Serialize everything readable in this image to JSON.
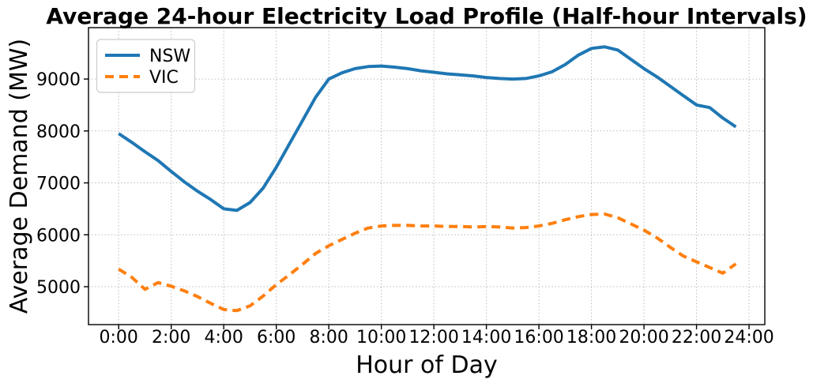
{
  "chart_data": {
    "type": "line",
    "title": "Average 24-hour Electricity Load Profile (Half-hour Intervals)",
    "xlabel": "Hour of Day",
    "ylabel": "Average Demand (MW)",
    "x_unit": "hour_of_day_decimal",
    "x_hours": [
      0,
      0.5,
      1,
      1.5,
      2,
      2.5,
      3,
      3.5,
      4,
      4.5,
      5,
      5.5,
      6,
      6.5,
      7,
      7.5,
      8,
      8.5,
      9,
      9.5,
      10,
      10.5,
      11,
      11.5,
      12,
      12.5,
      13,
      13.5,
      14,
      14.5,
      15,
      15.5,
      16,
      16.5,
      17,
      17.5,
      18,
      18.5,
      19,
      19.5,
      20,
      20.5,
      21,
      21.5,
      22,
      22.5,
      23,
      23.5
    ],
    "series": [
      {
        "name": "NSW",
        "color": "#1f77b4",
        "line_style": "solid",
        "line_width": 4,
        "values": [
          7950,
          7780,
          7600,
          7430,
          7220,
          7020,
          6840,
          6680,
          6500,
          6470,
          6620,
          6900,
          7300,
          7750,
          8200,
          8650,
          9000,
          9120,
          9200,
          9240,
          9250,
          9230,
          9200,
          9160,
          9130,
          9100,
          9080,
          9060,
          9030,
          9010,
          9000,
          9010,
          9060,
          9140,
          9280,
          9460,
          9590,
          9620,
          9560,
          9380,
          9200,
          9040,
          8860,
          8680,
          8500,
          8450,
          8250,
          8080
        ]
      },
      {
        "name": "VIC",
        "color": "#ff7f0e",
        "line_style": "dashed",
        "line_width": 4,
        "values": [
          5340,
          5180,
          4950,
          5080,
          5010,
          4920,
          4810,
          4680,
          4560,
          4540,
          4630,
          4820,
          5040,
          5230,
          5430,
          5640,
          5790,
          5910,
          6030,
          6130,
          6170,
          6180,
          6180,
          6170,
          6170,
          6160,
          6160,
          6150,
          6160,
          6150,
          6130,
          6140,
          6170,
          6220,
          6290,
          6350,
          6390,
          6400,
          6330,
          6210,
          6090,
          5940,
          5760,
          5590,
          5480,
          5370,
          5260,
          5440
        ]
      }
    ],
    "x_tick_hours": [
      0,
      2,
      4,
      6,
      8,
      10,
      12,
      14,
      16,
      18,
      20,
      22,
      24
    ],
    "x_tick_labels": [
      "0:00",
      "2:00",
      "4:00",
      "6:00",
      "8:00",
      "10:00",
      "12:00",
      "14:00",
      "16:00",
      "18:00",
      "20:00",
      "22:00",
      "24:00"
    ],
    "y_ticks": [
      5000,
      6000,
      7000,
      8000,
      9000
    ],
    "y_tick_labels": [
      "5000",
      "6000",
      "7000",
      "8000",
      "9000"
    ],
    "xlim": [
      -1.15,
      24.6
    ],
    "ylim": [
      4270,
      9990
    ],
    "grid": true,
    "grid_style": "dotted",
    "grid_color": "#bbbbbb",
    "axis_color": "#000000",
    "background_color": "#ffffff",
    "legend_position": "upper left"
  }
}
